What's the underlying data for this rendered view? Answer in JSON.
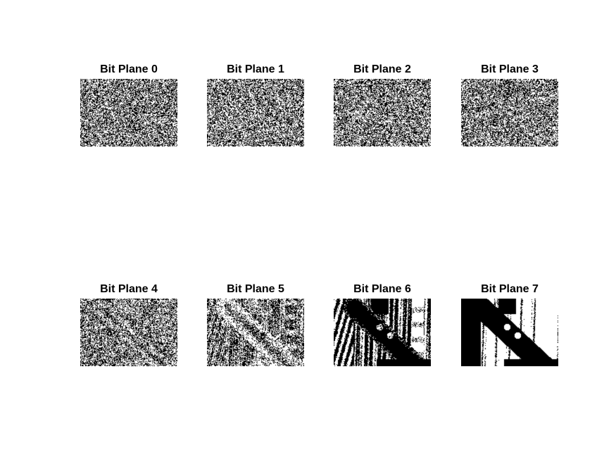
{
  "figure": {
    "background": "#ffffff",
    "planes": [
      {
        "title": "Bit Plane 0",
        "bit": 0
      },
      {
        "title": "Bit Plane 1",
        "bit": 1
      },
      {
        "title": "Bit Plane 2",
        "bit": 2
      },
      {
        "title": "Bit Plane 3",
        "bit": 3
      },
      {
        "title": "Bit Plane 4",
        "bit": 4
      },
      {
        "title": "Bit Plane 5",
        "bit": 5
      },
      {
        "title": "Bit Plane 6",
        "bit": 6
      },
      {
        "title": "Bit Plane 7",
        "bit": 7
      }
    ],
    "colors": {
      "on": "#ffffff",
      "off": "#000000"
    }
  }
}
